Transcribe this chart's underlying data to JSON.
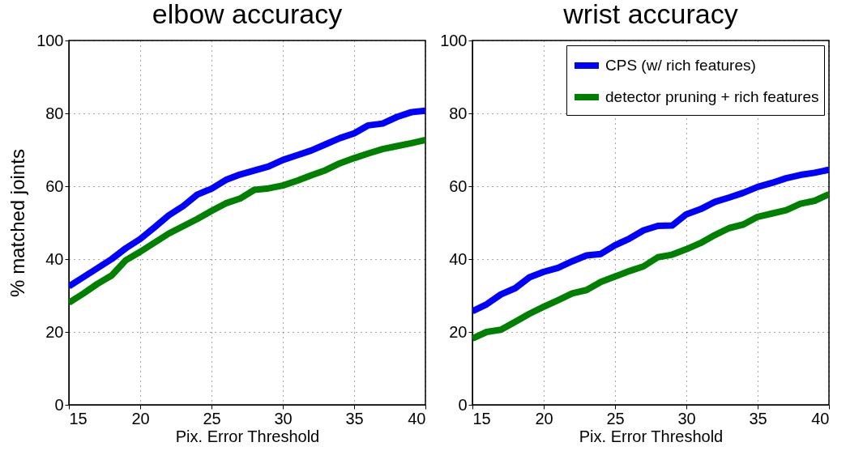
{
  "chart_data": [
    {
      "type": "line",
      "title": "elbow accuracy",
      "xlabel": "Pix. Error Threshold",
      "ylabel": "% matched joints",
      "x": [
        15,
        16,
        17,
        18,
        19,
        20,
        21,
        22,
        23,
        24,
        25,
        26,
        27,
        28,
        29,
        30,
        31,
        32,
        33,
        34,
        35,
        36,
        37,
        38,
        39,
        40
      ],
      "xlim": [
        15,
        40
      ],
      "xticks": [
        15,
        20,
        25,
        30,
        35,
        40
      ],
      "ylim": [
        0,
        100
      ],
      "yticks": [
        0,
        20,
        40,
        60,
        80,
        100
      ],
      "grid": true,
      "legend": false,
      "series": [
        {
          "color": "#0000ff",
          "values": [
            32.5,
            35,
            37.5,
            40,
            43,
            45.5,
            48.7,
            52,
            54.5,
            57.7,
            59.3,
            61.7,
            63.2,
            64.3,
            65.4,
            67.2,
            68.5,
            69.8,
            71.5,
            73.2,
            74.5,
            76.7,
            77.2,
            79,
            80.3,
            80.7
          ]
        },
        {
          "color": "#008000",
          "values": [
            28,
            30.5,
            33.2,
            35.5,
            39.7,
            42,
            44.5,
            47,
            49,
            51,
            53.2,
            55.3,
            56.6,
            59,
            59.4,
            60.2,
            61.5,
            63,
            64.4,
            66.3,
            67.7,
            69,
            70.2,
            71,
            71.8,
            72.7
          ]
        }
      ]
    },
    {
      "type": "line",
      "title": "wrist accuracy",
      "xlabel": "Pix. Error Threshold",
      "x": [
        15,
        16,
        17,
        18,
        19,
        20,
        21,
        22,
        23,
        24,
        25,
        26,
        27,
        28,
        29,
        30,
        31,
        32,
        33,
        34,
        35,
        36,
        37,
        38,
        39,
        40
      ],
      "xlim": [
        15,
        40
      ],
      "xticks": [
        15,
        20,
        25,
        30,
        35,
        40
      ],
      "ylim": [
        0,
        100
      ],
      "yticks": [
        0,
        20,
        40,
        60,
        80,
        100
      ],
      "grid": true,
      "legend": "top right",
      "series": [
        {
          "name": "CPS (w/ rich features)",
          "color": "#0000ff",
          "values": [
            25.7,
            27.6,
            30.3,
            32,
            35,
            36.5,
            37.6,
            39.4,
            41,
            41.4,
            43.8,
            45.6,
            47.9,
            49.1,
            49.2,
            52.3,
            53.7,
            55.7,
            56.9,
            58.2,
            59.8,
            60.9,
            62.2,
            63.1,
            63.7,
            64.5
          ]
        },
        {
          "name": "detector pruning + rich features",
          "color": "#008000",
          "values": [
            18.2,
            20,
            20.6,
            22.8,
            25,
            26.9,
            28.7,
            30.6,
            31.5,
            33.7,
            35.2,
            36.7,
            38,
            40.5,
            41.2,
            42.7,
            44.4,
            46.6,
            48.5,
            49.5,
            51.6,
            52.5,
            53.4,
            55.2,
            56,
            57.8
          ]
        }
      ]
    }
  ]
}
